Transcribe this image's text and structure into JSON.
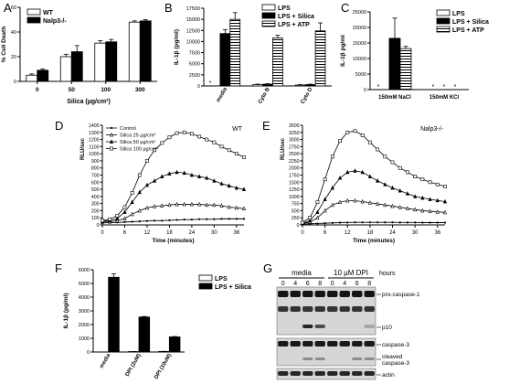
{
  "chart_data": [
    {
      "panel": "A",
      "type": "bar",
      "ylabel": "% Cell Death",
      "xlabel": "Silica (µg/cm²)",
      "categories": [
        "0",
        "50",
        "100",
        "300"
      ],
      "ylim": [
        0,
        60
      ],
      "yticks": [
        "0",
        "20",
        "40",
        "60"
      ],
      "series": [
        {
          "name": "WT",
          "color": "#ffffff",
          "values": [
            5,
            20,
            31,
            48
          ],
          "err": [
            1,
            2,
            2,
            1
          ]
        },
        {
          "name": "Nalp3-/-",
          "color": "#000000",
          "values": [
            9,
            24,
            32,
            49
          ],
          "err": [
            1,
            5,
            2,
            1
          ]
        }
      ]
    },
    {
      "panel": "B",
      "type": "bar",
      "ylabel": "IL-1β (pg/ml)",
      "categories": [
        "media",
        "Cyto B",
        "Cyto D"
      ],
      "ylim": [
        0,
        17500
      ],
      "yticks": [
        "0",
        "2500",
        "5000",
        "7500",
        "10000",
        "12500",
        "15000",
        "17500"
      ],
      "series": [
        {
          "name": "LPS",
          "color": "#ffffff",
          "values": [
            0,
            300,
            200
          ],
          "err": [
            0,
            100,
            100
          ]
        },
        {
          "name": "LPS + Silica",
          "color": "#000000",
          "values": [
            11800,
            400,
            300
          ],
          "err": [
            900,
            100,
            100
          ]
        },
        {
          "name": "LPS + ATP",
          "color": "hatch",
          "values": [
            15000,
            10800,
            12400
          ],
          "err": [
            1500,
            600,
            1800
          ]
        }
      ],
      "annotations": [
        "*"
      ]
    },
    {
      "panel": "C",
      "type": "bar",
      "ylabel": "IL-1β pg/ml",
      "categories": [
        "150mM NaCl",
        "150mM KCl"
      ],
      "ylim": [
        0,
        25000
      ],
      "yticks": [
        "0",
        "5000",
        "10000",
        "15000",
        "20000",
        "25000"
      ],
      "series": [
        {
          "name": "LPS",
          "color": "#ffffff",
          "values": [
            0,
            0
          ],
          "err": [
            0,
            0
          ]
        },
        {
          "name": "LPS + Silica",
          "color": "#000000",
          "values": [
            16500,
            0
          ],
          "err": [
            6500,
            0
          ]
        },
        {
          "name": "LPS + ATP",
          "color": "hatch",
          "values": [
            13200,
            0
          ],
          "err": [
            700,
            0
          ]
        }
      ],
      "annotations": [
        "*",
        "*",
        "*",
        "*"
      ]
    },
    {
      "panel": "D",
      "type": "line",
      "title": "WT",
      "xlabel": "Time (minutes)",
      "ylabel": "RLU/sec",
      "xlim": [
        0,
        38
      ],
      "xticks": [
        "0",
        "6",
        "12",
        "18",
        "24",
        "30",
        "36"
      ],
      "ylim": [
        0,
        1400
      ],
      "yticks": [
        "0",
        "100",
        "200",
        "300",
        "400",
        "500",
        "600",
        "700",
        "800",
        "900",
        "1000",
        "1100",
        "1200",
        "1300",
        "1400"
      ],
      "x": [
        0,
        2,
        4,
        6,
        8,
        10,
        12,
        14,
        16,
        18,
        20,
        22,
        24,
        26,
        28,
        30,
        32,
        34,
        36,
        38
      ],
      "series": [
        {
          "name": "Control",
          "marker": "dot",
          "values": [
            30,
            30,
            35,
            40,
            45,
            50,
            55,
            60,
            60,
            65,
            70,
            75,
            75,
            80,
            80,
            80,
            85,
            85,
            85,
            85
          ]
        },
        {
          "name": "Silica 25 µg/cm²",
          "marker": "open-triangle",
          "values": [
            40,
            45,
            60,
            90,
            150,
            200,
            240,
            260,
            270,
            280,
            290,
            290,
            290,
            290,
            280,
            280,
            270,
            250,
            240,
            230
          ]
        },
        {
          "name": "Silica 50 µg/cm²",
          "marker": "filled-triangle",
          "values": [
            50,
            60,
            90,
            180,
            320,
            460,
            560,
            620,
            680,
            720,
            740,
            730,
            700,
            680,
            660,
            620,
            580,
            550,
            520,
            500
          ]
        },
        {
          "name": "Silica 100 µg/cm²",
          "marker": "open-square",
          "values": [
            60,
            80,
            130,
            250,
            450,
            700,
            900,
            1050,
            1150,
            1230,
            1290,
            1300,
            1280,
            1240,
            1200,
            1160,
            1100,
            1050,
            1000,
            950
          ]
        }
      ]
    },
    {
      "panel": "E",
      "type": "line",
      "title": "Nalp3-/-",
      "xlabel": "Time (minutes)",
      "ylabel": "RLU/sec",
      "xlim": [
        0,
        38
      ],
      "xticks": [
        "0",
        "6",
        "12",
        "18",
        "24",
        "30",
        "36"
      ],
      "ylim": [
        0,
        3500
      ],
      "yticks": [
        "0",
        "250",
        "500",
        "750",
        "1000",
        "1250",
        "1500",
        "1750",
        "2000",
        "2250",
        "2500",
        "2750",
        "3000",
        "3250",
        "3500"
      ],
      "x": [
        0,
        2,
        4,
        6,
        8,
        10,
        12,
        14,
        16,
        18,
        20,
        22,
        24,
        26,
        28,
        30,
        32,
        34,
        36,
        38
      ],
      "series": [
        {
          "name": "Control",
          "marker": "dot",
          "values": [
            30,
            40,
            50,
            60,
            70,
            80,
            85,
            90,
            90,
            90,
            90,
            90,
            90,
            85,
            85,
            85,
            80,
            80,
            80,
            80
          ]
        },
        {
          "name": "Silica 25 µg/cm²",
          "marker": "open-triangle",
          "values": [
            50,
            100,
            250,
            500,
            700,
            800,
            850,
            850,
            820,
            780,
            740,
            700,
            660,
            620,
            580,
            540,
            500,
            480,
            460,
            440
          ]
        },
        {
          "name": "Silica 50 µg/cm²",
          "marker": "filled-triangle",
          "values": [
            60,
            150,
            450,
            900,
            1300,
            1650,
            1850,
            1900,
            1850,
            1700,
            1550,
            1420,
            1300,
            1200,
            1100,
            1000,
            950,
            900,
            860,
            820
          ]
        },
        {
          "name": "Silica 100 µg/cm²",
          "marker": "open-square",
          "values": [
            80,
            250,
            800,
            1600,
            2400,
            2950,
            3250,
            3300,
            3150,
            2900,
            2650,
            2400,
            2200,
            2000,
            1850,
            1700,
            1600,
            1500,
            1420,
            1350
          ]
        }
      ]
    },
    {
      "panel": "F",
      "type": "bar",
      "ylabel": "IL-1β (pg/ml)",
      "categories": [
        "media",
        "DPI (2uM)",
        "DPI (10uM)"
      ],
      "ylim": [
        0,
        6000
      ],
      "yticks": [
        "0",
        "1000",
        "2000",
        "3000",
        "4000",
        "5000",
        "6000"
      ],
      "series": [
        {
          "name": "LPS",
          "color": "#ffffff",
          "values": [
            0,
            30,
            40
          ],
          "err": [
            0,
            10,
            10
          ]
        },
        {
          "name": "LPS + Silica",
          "color": "#000000",
          "values": [
            5450,
            2550,
            1100
          ],
          "err": [
            250,
            40,
            30
          ]
        }
      ]
    },
    {
      "panel": "G",
      "type": "table",
      "groups": [
        "media",
        "10 µM DPI"
      ],
      "lanes": [
        "0",
        "4",
        "6",
        "8",
        "0",
        "4",
        "6",
        "8"
      ],
      "hours_label": "hours",
      "bands": [
        "pro-caspase-1",
        "p10",
        "caspase-3",
        "cleaved caspase-3",
        "actin"
      ]
    }
  ],
  "panel_letters": [
    "A",
    "B",
    "C",
    "D",
    "E",
    "F",
    "G"
  ]
}
